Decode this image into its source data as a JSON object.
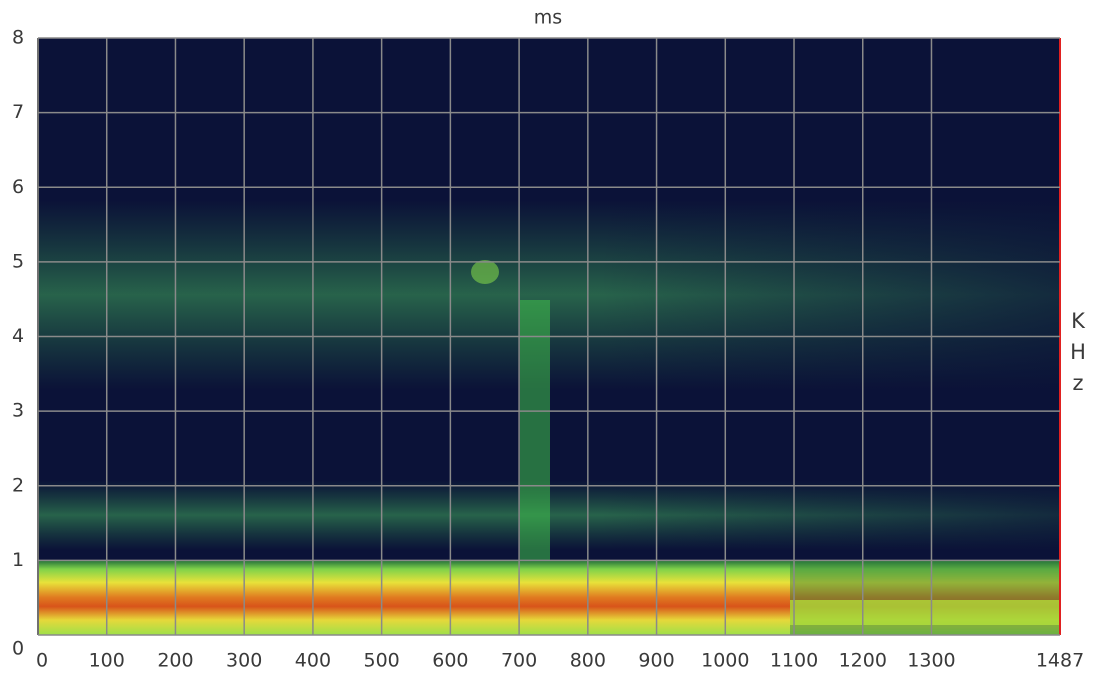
{
  "chart_data": {
    "type": "spectrogram",
    "title": "ms",
    "y_label": "KHz",
    "xlim": [
      0,
      1487
    ],
    "xticks": [
      0,
      100,
      200,
      300,
      400,
      500,
      600,
      700,
      800,
      900,
      1000,
      1100,
      1200,
      1300,
      1487
    ],
    "ylim": [
      0,
      8
    ],
    "yticks": [
      0,
      1,
      2,
      3,
      4,
      5,
      6,
      7,
      8
    ],
    "grid": true
  }
}
